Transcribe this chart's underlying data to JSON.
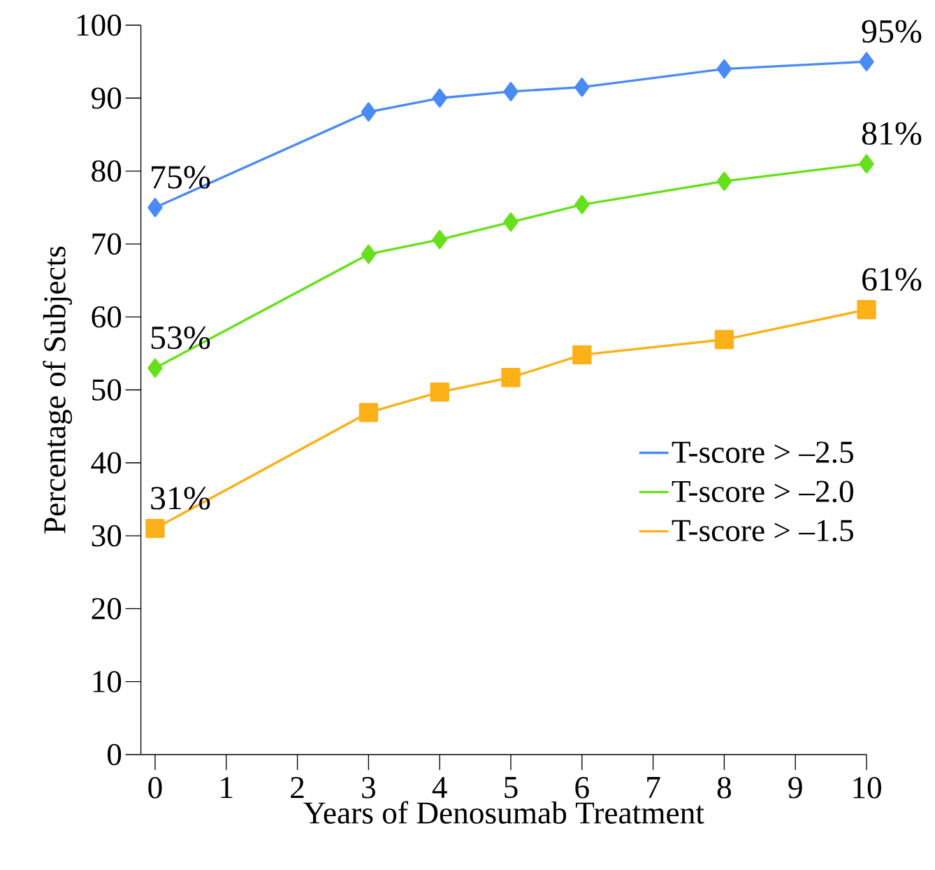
{
  "chart_data": {
    "type": "line",
    "xlabel": "Years of Denosumab Treatment",
    "ylabel": "Percentage of Subjects",
    "x": [
      0,
      3,
      4,
      5,
      6,
      8,
      10
    ],
    "series": [
      {
        "name": "T-score > –2.5",
        "color": "#4a8af4",
        "marker": "diamond",
        "values": [
          75,
          88.1,
          90,
          90.9,
          91.5,
          94,
          95
        ],
        "value_labels": [
          "75%",
          null,
          null,
          null,
          null,
          null,
          "95%"
        ]
      },
      {
        "name": "T-score > –2.0",
        "color": "#66e01a",
        "marker": "diamond",
        "values": [
          53,
          68.6,
          70.6,
          73,
          75.4,
          78.6,
          81
        ],
        "value_labels": [
          "53%",
          null,
          null,
          null,
          null,
          null,
          "81%"
        ]
      },
      {
        "name": "T-score > –1.5",
        "color": "#fbb117",
        "marker": "square",
        "values": [
          31,
          46.9,
          49.7,
          51.7,
          54.8,
          56.9,
          61
        ],
        "value_labels": [
          "31%",
          null,
          null,
          null,
          null,
          null,
          "61%"
        ]
      }
    ],
    "xlim": [
      -0.2,
      10
    ],
    "ylim": [
      0,
      100
    ],
    "xticks": [
      0,
      1,
      2,
      3,
      4,
      5,
      6,
      7,
      8,
      9,
      10
    ],
    "yticks": [
      0,
      10,
      20,
      30,
      40,
      50,
      60,
      70,
      80,
      90,
      100
    ],
    "grid": false,
    "legend": "right",
    "line_style": "solid"
  }
}
